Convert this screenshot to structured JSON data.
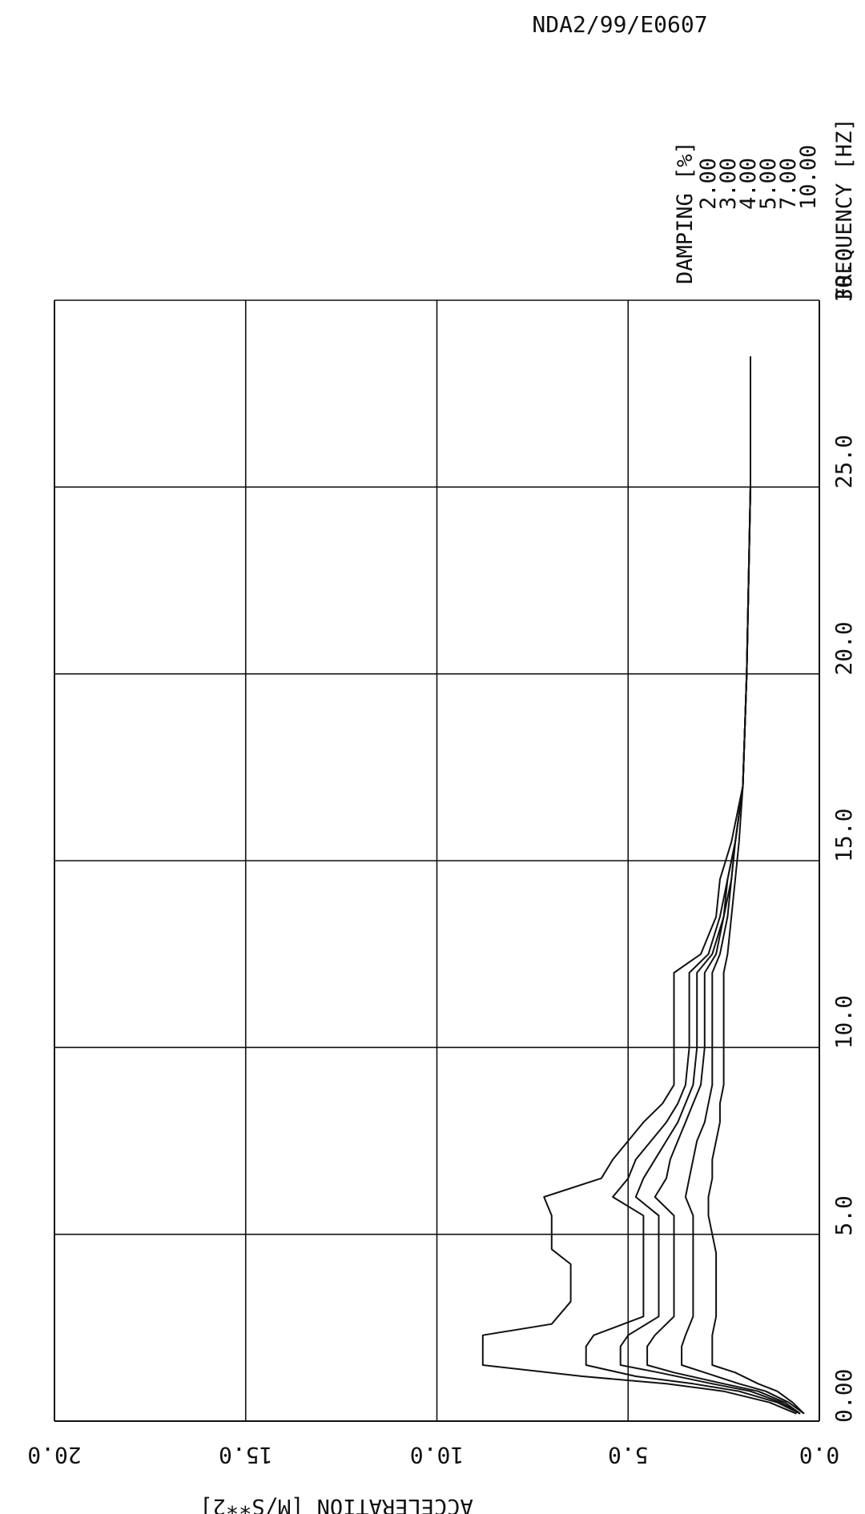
{
  "chart_data": {
    "type": "line",
    "title": "NDA2/99/E0607",
    "xlabel": "FREQUENCY [HZ]",
    "ylabel": "ACCELERATION [M/S**2]",
    "legend_title": "DAMPING [%]",
    "legend_placement": "top-right",
    "grid": true,
    "xlim": [
      0,
      30
    ],
    "ylim": [
      0,
      20
    ],
    "x_ticks": [
      "0.00",
      "5.0",
      "10.0",
      "15.0",
      "20.0",
      "25.0",
      "30.0"
    ],
    "y_ticks": [
      "0.0",
      "5.0",
      "10.0",
      "15.0",
      "20.0"
    ],
    "series": [
      {
        "name": "2.00",
        "points": [
          [
            0.2,
            0.6
          ],
          [
            0.5,
            1.3
          ],
          [
            0.8,
            2.5
          ],
          [
            1.0,
            4.0
          ],
          [
            1.2,
            6.2
          ],
          [
            1.5,
            8.8
          ],
          [
            2.3,
            8.8
          ],
          [
            2.6,
            7.0
          ],
          [
            3.2,
            6.5
          ],
          [
            3.6,
            6.5
          ],
          [
            4.2,
            6.5
          ],
          [
            4.6,
            7.0
          ],
          [
            5.5,
            7.0
          ],
          [
            6.0,
            7.2
          ],
          [
            6.5,
            5.7
          ],
          [
            7.0,
            5.4
          ],
          [
            7.5,
            5.0
          ],
          [
            8.0,
            4.6
          ],
          [
            8.5,
            4.1
          ],
          [
            9.0,
            3.8
          ],
          [
            10.0,
            3.8
          ],
          [
            11.0,
            3.8
          ],
          [
            12.0,
            3.8
          ],
          [
            12.5,
            3.1
          ],
          [
            13.5,
            2.7
          ],
          [
            14.5,
            2.6
          ],
          [
            15.5,
            2.3
          ],
          [
            17.0,
            2.0
          ],
          [
            20.0,
            1.9
          ],
          [
            25.0,
            1.8
          ],
          [
            28.5,
            1.8
          ]
        ]
      },
      {
        "name": "3.00",
        "points": [
          [
            0.2,
            0.5
          ],
          [
            0.5,
            1.1
          ],
          [
            0.8,
            2.1
          ],
          [
            1.0,
            3.3
          ],
          [
            1.2,
            4.8
          ],
          [
            1.5,
            6.1
          ],
          [
            2.0,
            6.1
          ],
          [
            2.3,
            5.9
          ],
          [
            2.8,
            4.6
          ],
          [
            3.5,
            4.6
          ],
          [
            4.5,
            4.6
          ],
          [
            5.5,
            4.6
          ],
          [
            6.0,
            5.4
          ],
          [
            6.5,
            5.0
          ],
          [
            7.0,
            4.8
          ],
          [
            7.5,
            4.4
          ],
          [
            8.0,
            4.0
          ],
          [
            8.5,
            3.7
          ],
          [
            9.0,
            3.5
          ],
          [
            10.0,
            3.4
          ],
          [
            11.0,
            3.4
          ],
          [
            12.0,
            3.4
          ],
          [
            12.5,
            2.9
          ],
          [
            13.5,
            2.6
          ],
          [
            14.5,
            2.4
          ],
          [
            15.5,
            2.2
          ],
          [
            17.0,
            2.0
          ],
          [
            20.0,
            1.9
          ],
          [
            25.0,
            1.8
          ],
          [
            28.5,
            1.8
          ]
        ]
      },
      {
        "name": "4.00",
        "points": [
          [
            0.2,
            0.5
          ],
          [
            0.5,
            1.0
          ],
          [
            0.8,
            1.8
          ],
          [
            1.0,
            2.8
          ],
          [
            1.3,
            4.2
          ],
          [
            1.5,
            5.2
          ],
          [
            2.0,
            5.2
          ],
          [
            2.3,
            5.0
          ],
          [
            2.8,
            4.2
          ],
          [
            3.5,
            4.2
          ],
          [
            4.5,
            4.2
          ],
          [
            5.5,
            4.2
          ],
          [
            6.0,
            4.8
          ],
          [
            6.5,
            4.6
          ],
          [
            7.0,
            4.3
          ],
          [
            7.5,
            4.0
          ],
          [
            8.0,
            3.7
          ],
          [
            8.5,
            3.5
          ],
          [
            9.0,
            3.3
          ],
          [
            10.0,
            3.2
          ],
          [
            11.0,
            3.2
          ],
          [
            12.0,
            3.2
          ],
          [
            12.5,
            2.8
          ],
          [
            13.5,
            2.5
          ],
          [
            14.5,
            2.4
          ],
          [
            15.5,
            2.2
          ],
          [
            17.0,
            2.0
          ],
          [
            20.0,
            1.9
          ],
          [
            25.0,
            1.8
          ],
          [
            28.5,
            1.8
          ]
        ]
      },
      {
        "name": "5.00",
        "points": [
          [
            0.2,
            0.5
          ],
          [
            0.5,
            0.9
          ],
          [
            0.8,
            1.6
          ],
          [
            1.0,
            2.5
          ],
          [
            1.3,
            3.8
          ],
          [
            1.5,
            4.5
          ],
          [
            2.0,
            4.5
          ],
          [
            2.3,
            4.3
          ],
          [
            2.8,
            3.8
          ],
          [
            3.5,
            3.8
          ],
          [
            4.5,
            3.8
          ],
          [
            5.5,
            3.8
          ],
          [
            6.0,
            4.3
          ],
          [
            6.5,
            4.0
          ],
          [
            7.0,
            3.9
          ],
          [
            7.5,
            3.7
          ],
          [
            8.0,
            3.5
          ],
          [
            8.5,
            3.3
          ],
          [
            9.0,
            3.1
          ],
          [
            10.0,
            3.0
          ],
          [
            11.0,
            3.0
          ],
          [
            12.0,
            3.0
          ],
          [
            12.5,
            2.7
          ],
          [
            13.5,
            2.5
          ],
          [
            14.5,
            2.3
          ],
          [
            15.5,
            2.2
          ],
          [
            17.0,
            2.0
          ],
          [
            20.0,
            1.9
          ],
          [
            25.0,
            1.8
          ],
          [
            28.5,
            1.8
          ]
        ]
      },
      {
        "name": "7.00",
        "points": [
          [
            0.2,
            0.4
          ],
          [
            0.5,
            0.8
          ],
          [
            0.8,
            1.4
          ],
          [
            1.0,
            2.1
          ],
          [
            1.3,
            3.0
          ],
          [
            1.5,
            3.6
          ],
          [
            2.0,
            3.6
          ],
          [
            2.3,
            3.5
          ],
          [
            2.8,
            3.3
          ],
          [
            3.5,
            3.3
          ],
          [
            4.5,
            3.3
          ],
          [
            5.5,
            3.3
          ],
          [
            6.0,
            3.5
          ],
          [
            6.5,
            3.4
          ],
          [
            7.0,
            3.3
          ],
          [
            7.5,
            3.2
          ],
          [
            8.0,
            3.0
          ],
          [
            8.5,
            2.9
          ],
          [
            9.0,
            2.8
          ],
          [
            10.0,
            2.8
          ],
          [
            11.0,
            2.8
          ],
          [
            12.0,
            2.8
          ],
          [
            12.5,
            2.6
          ],
          [
            13.5,
            2.4
          ],
          [
            14.5,
            2.3
          ],
          [
            15.5,
            2.2
          ],
          [
            17.0,
            2.0
          ],
          [
            20.0,
            1.9
          ],
          [
            25.0,
            1.8
          ],
          [
            28.5,
            1.8
          ]
        ]
      },
      {
        "name": "10.00",
        "points": [
          [
            0.2,
            0.4
          ],
          [
            0.5,
            0.7
          ],
          [
            0.8,
            1.1
          ],
          [
            1.0,
            1.6
          ],
          [
            1.3,
            2.2
          ],
          [
            1.5,
            2.8
          ],
          [
            2.0,
            2.8
          ],
          [
            2.3,
            2.8
          ],
          [
            2.8,
            2.7
          ],
          [
            3.5,
            2.7
          ],
          [
            4.5,
            2.7
          ],
          [
            5.5,
            2.9
          ],
          [
            6.0,
            2.9
          ],
          [
            6.5,
            2.8
          ],
          [
            7.0,
            2.8
          ],
          [
            7.5,
            2.7
          ],
          [
            8.0,
            2.6
          ],
          [
            8.5,
            2.6
          ],
          [
            9.0,
            2.5
          ],
          [
            10.0,
            2.5
          ],
          [
            11.0,
            2.5
          ],
          [
            12.0,
            2.5
          ],
          [
            12.5,
            2.4
          ],
          [
            13.5,
            2.3
          ],
          [
            14.5,
            2.2
          ],
          [
            15.5,
            2.1
          ],
          [
            17.0,
            2.0
          ],
          [
            20.0,
            1.9
          ],
          [
            25.0,
            1.8
          ],
          [
            28.5,
            1.8
          ]
        ]
      }
    ]
  }
}
